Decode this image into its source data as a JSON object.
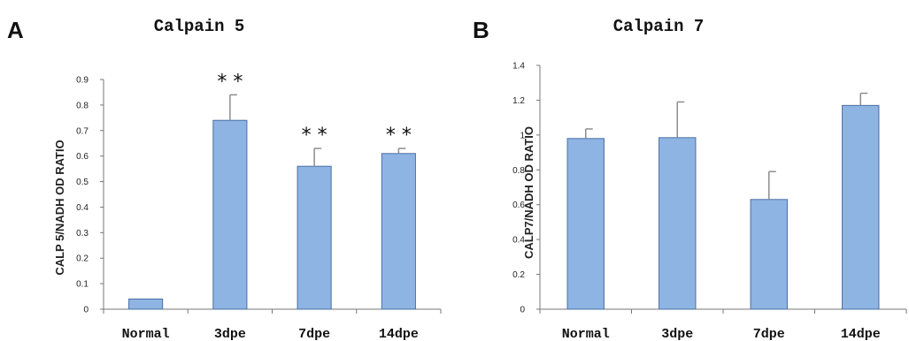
{
  "chart_data": [
    {
      "panel": "A",
      "type": "bar",
      "title": "Calpain 5",
      "ylabel": "CALP 5/NADH OD RATIO",
      "xlabel": "",
      "categories": [
        "Normal",
        "3dpe",
        "7dpe",
        "14dpe"
      ],
      "values": [
        0.04,
        0.74,
        0.56,
        0.61
      ],
      "error_upper": [
        0.0,
        0.1,
        0.07,
        0.02
      ],
      "significance": [
        "",
        "* *",
        "* *",
        "* *"
      ],
      "ylim": [
        0,
        0.9
      ],
      "yticks": [
        "0",
        "0.1",
        "0.2",
        "0.3",
        "0.4",
        "0.5",
        "0.6",
        "0.7",
        "0.8",
        "0.9"
      ],
      "grid": false,
      "bar_color": "#8eb4e3",
      "bar_edge_color": "#4a6fa5"
    },
    {
      "panel": "B",
      "type": "bar",
      "title": "Calpain 7",
      "ylabel": "CALP7/NADH OD RATIO",
      "xlabel": "",
      "categories": [
        "Normal",
        "3dpe",
        "7dpe",
        "14dpe"
      ],
      "values": [
        0.98,
        0.985,
        0.63,
        1.17
      ],
      "error_upper": [
        0.055,
        0.205,
        0.16,
        0.07
      ],
      "significance": [
        "",
        "",
        "",
        ""
      ],
      "ylim": [
        0,
        1.4
      ],
      "yticks": [
        "0",
        "0.2",
        "0.4",
        "0.6",
        "0.8",
        "1",
        "1.2",
        "1.4"
      ],
      "grid": false,
      "bar_color": "#8eb4e3",
      "bar_edge_color": "#4a6fa5"
    }
  ]
}
